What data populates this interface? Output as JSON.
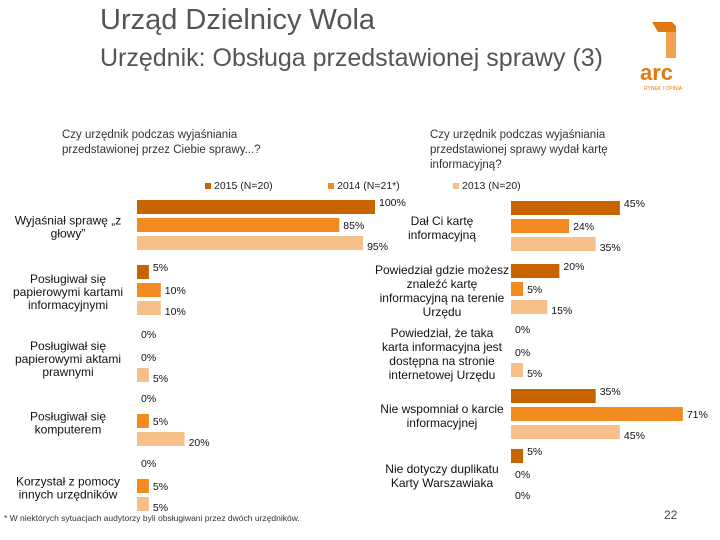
{
  "header": {
    "title": "Urząd Dzielnicy Wola",
    "subtitle": "Urzędnik: Obsługa przedstawionej sprawy (3)",
    "logo_text": "arc",
    "logo_subtext": "RYNEK I OPINIA"
  },
  "colors": {
    "2015": "#c86400",
    "2014": "#f28a20",
    "2013": "#f7c08a"
  },
  "chart_data": [
    {
      "type": "bar",
      "orientation": "horizontal",
      "title": "Czy urzędnik podczas wyjaśniania przedstawionej przez Ciebie sprawy...?",
      "series": [
        {
          "name": "2015 (N=20)",
          "values": [
            100,
            5,
            0,
            0,
            0
          ]
        },
        {
          "name": "2014 (N=21*)",
          "values": [
            85,
            10,
            0,
            5,
            5
          ]
        },
        {
          "name": "2013 (N=20)",
          "values": [
            95,
            10,
            5,
            20,
            5
          ]
        }
      ],
      "categories": [
        "Wyjaśniał sprawę „z głowy”",
        "Posługiwał się papierowymi kartami informacyjnymi",
        "Posługiwał się papierowymi aktami prawnymi",
        "Posługiwał się komputerem",
        "Korzystał z pomocy innych urzędników"
      ],
      "value_labels": [
        [
          "100%",
          "85%",
          "95%"
        ],
        [
          "5%",
          "10%",
          "10%"
        ],
        [
          "0%",
          "0%",
          "5%"
        ],
        [
          "0%",
          "5%",
          "20%"
        ],
        [
          "0%",
          "5%",
          "5%"
        ]
      ],
      "unit": "%"
    },
    {
      "type": "bar",
      "orientation": "horizontal",
      "title": "Czy urzędnik podczas wyjaśniania przedstawionej sprawy wydał kartę informacyjną?",
      "series": [
        {
          "name": "2015 (N=20)",
          "values": [
            45,
            20,
            0,
            35,
            5
          ]
        },
        {
          "name": "2014 (N=21*)",
          "values": [
            24,
            5,
            0,
            71,
            0
          ]
        },
        {
          "name": "2013 (N=20)",
          "values": [
            35,
            15,
            5,
            45,
            0
          ]
        }
      ],
      "categories": [
        "Dał Ci kartę informacyjną",
        "Powiedział gdzie możesz znaleźć kartę informacyjną na terenie Urzędu",
        "Powiedział, że taka karta informacyjna jest dostępna na stronie internetowej Urzędu",
        "Nie wspomniał o karcie informacyjnej",
        "Nie dotyczy duplikatu Karty Warszawiaka"
      ],
      "value_labels": [
        [
          "45%",
          "24%",
          "35%"
        ],
        [
          "20%",
          "5%",
          "15%"
        ],
        [
          "0%",
          "0%",
          "5%"
        ],
        [
          "35%",
          "71%",
          "45%"
        ],
        [
          "5%",
          "0%",
          "0%"
        ]
      ],
      "unit": "%"
    }
  ],
  "footnote": "* W niektórych sytuacjach audytorzy byli obsługiwani przez dwóch urzędników.",
  "page_number": "22"
}
